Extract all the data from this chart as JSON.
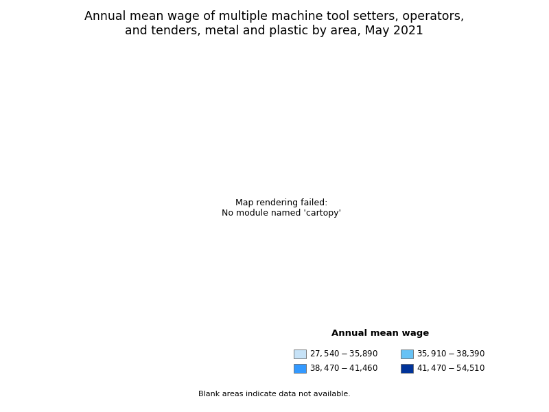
{
  "title": "Annual mean wage of multiple machine tool setters, operators,\nand tenders, metal and plastic by area, May 2021",
  "title_fontsize": 12.5,
  "legend_title": "Annual mean wage",
  "legend_title_fontsize": 9.5,
  "legend_fontsize": 8.5,
  "blank_note": "Blank areas indicate data not available.",
  "legend_labels_left": [
    "$27,540 - $35,890",
    "$38,470 - $41,460"
  ],
  "legend_labels_right": [
    "$35,910 - $38,390",
    "$41,470 - $54,510"
  ],
  "legend_colors_left": [
    "#c6e2f7",
    "#3399ff"
  ],
  "legend_colors_right": [
    "#66c2f5",
    "#003399"
  ],
  "background_color": "#ffffff",
  "map_edge_color": "#ffffff",
  "map_edge_width": 0.3,
  "no_data_color": "#ffffff",
  "bin_colors": [
    "#c6e2f7",
    "#66c2f5",
    "#3399ff",
    "#003399"
  ],
  "figsize": [
    8.0,
    6.0
  ],
  "dpi": 100
}
